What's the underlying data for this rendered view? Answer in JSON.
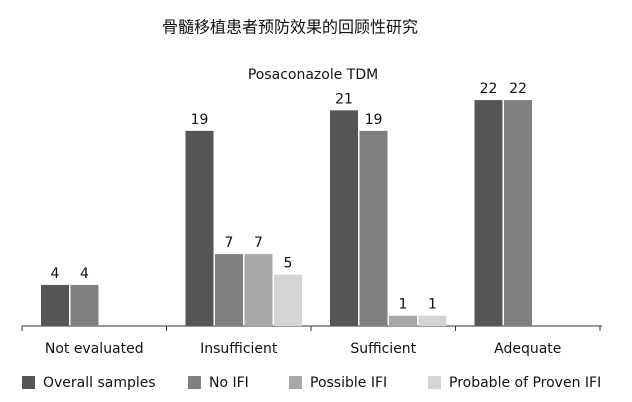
{
  "chart_data": {
    "type": "bar",
    "title": "骨髓移植患者预防效果的回顾性研究",
    "subtitle": "Posaconazole TDM",
    "categories": [
      "Not evaluated",
      "Insufficient",
      "Sufficient",
      "Adequate"
    ],
    "series": [
      {
        "name": "Overall samples",
        "color": "#555555",
        "values": [
          4,
          19,
          21,
          22
        ]
      },
      {
        "name": "No IFI",
        "color": "#808080",
        "values": [
          4,
          7,
          19,
          22
        ]
      },
      {
        "name": "Possible IFI",
        "color": "#a8a8a8",
        "values": [
          null,
          7,
          1,
          null
        ]
      },
      {
        "name": "Probable of Proven IFI",
        "color": "#d4d4d4",
        "values": [
          null,
          5,
          1,
          null
        ]
      }
    ]
  }
}
